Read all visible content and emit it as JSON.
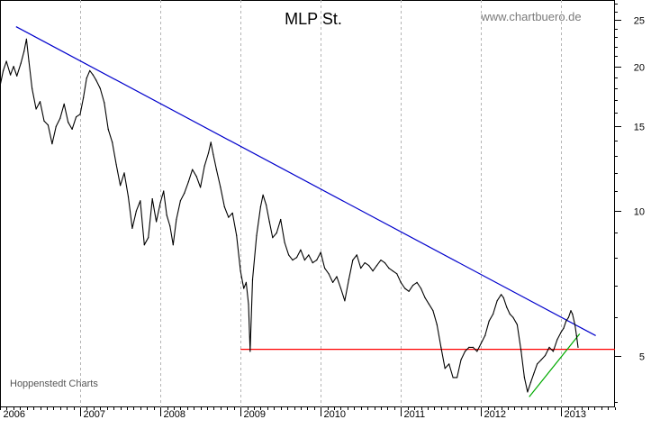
{
  "chart_data": {
    "type": "line",
    "title": "MLP St.",
    "source_label": "www.chartbuero.de",
    "credit_label": "Hoppenstedt Charts",
    "y_scale": "log",
    "ylim": [
      3.9,
      27.5
    ],
    "xlim": [
      2006.0,
      2013.67
    ],
    "y_ticks": [
      {
        "value": 5,
        "label": "5"
      },
      {
        "value": 10,
        "label": "10"
      },
      {
        "value": 15,
        "label": "15"
      },
      {
        "value": 20,
        "label": "20"
      },
      {
        "value": 25,
        "label": "25"
      }
    ],
    "x_ticks": [
      {
        "value": 2006,
        "label": "2006"
      },
      {
        "value": 2007,
        "label": "2007"
      },
      {
        "value": 2008,
        "label": "2008"
      },
      {
        "value": 2009,
        "label": "2009"
      },
      {
        "value": 2010,
        "label": "2010"
      },
      {
        "value": 2011,
        "label": "2011"
      },
      {
        "value": 2012,
        "label": "2012"
      },
      {
        "value": 2013,
        "label": "2013"
      }
    ],
    "gridlines": "vertical-dotted",
    "series": [
      {
        "name": "MLP St.",
        "color": "#000000",
        "points": [
          [
            2006.0,
            18.2
          ],
          [
            2006.04,
            19.6
          ],
          [
            2006.08,
            20.5
          ],
          [
            2006.13,
            19.2
          ],
          [
            2006.17,
            20.0
          ],
          [
            2006.21,
            19.1
          ],
          [
            2006.26,
            20.3
          ],
          [
            2006.3,
            21.5
          ],
          [
            2006.33,
            22.8
          ],
          [
            2006.36,
            20.5
          ],
          [
            2006.4,
            18.0
          ],
          [
            2006.45,
            16.3
          ],
          [
            2006.5,
            16.9
          ],
          [
            2006.55,
            15.4
          ],
          [
            2006.6,
            15.1
          ],
          [
            2006.65,
            13.8
          ],
          [
            2006.7,
            15.0
          ],
          [
            2006.75,
            15.6
          ],
          [
            2006.8,
            16.7
          ],
          [
            2006.85,
            15.3
          ],
          [
            2006.9,
            14.8
          ],
          [
            2006.95,
            15.7
          ],
          [
            2007.0,
            15.9
          ],
          [
            2007.04,
            17.2
          ],
          [
            2007.08,
            18.9
          ],
          [
            2007.12,
            19.6
          ],
          [
            2007.16,
            19.2
          ],
          [
            2007.2,
            18.7
          ],
          [
            2007.25,
            18.0
          ],
          [
            2007.3,
            16.8
          ],
          [
            2007.35,
            14.8
          ],
          [
            2007.4,
            13.9
          ],
          [
            2007.45,
            12.5
          ],
          [
            2007.5,
            11.3
          ],
          [
            2007.55,
            12.0
          ],
          [
            2007.6,
            10.7
          ],
          [
            2007.65,
            9.2
          ],
          [
            2007.7,
            10.0
          ],
          [
            2007.75,
            10.5
          ],
          [
            2007.8,
            8.5
          ],
          [
            2007.85,
            8.8
          ],
          [
            2007.9,
            10.6
          ],
          [
            2007.95,
            9.5
          ],
          [
            2008.0,
            10.4
          ],
          [
            2008.04,
            11.0
          ],
          [
            2008.08,
            9.8
          ],
          [
            2008.12,
            9.3
          ],
          [
            2008.16,
            8.5
          ],
          [
            2008.2,
            9.6
          ],
          [
            2008.25,
            10.5
          ],
          [
            2008.3,
            10.9
          ],
          [
            2008.35,
            11.5
          ],
          [
            2008.4,
            12.2
          ],
          [
            2008.45,
            11.8
          ],
          [
            2008.5,
            11.2
          ],
          [
            2008.55,
            12.4
          ],
          [
            2008.6,
            13.2
          ],
          [
            2008.63,
            13.9
          ],
          [
            2008.66,
            13.1
          ],
          [
            2008.7,
            12.2
          ],
          [
            2008.75,
            11.2
          ],
          [
            2008.8,
            10.2
          ],
          [
            2008.85,
            9.7
          ],
          [
            2008.9,
            9.9
          ],
          [
            2008.95,
            8.9
          ],
          [
            2009.0,
            7.5
          ],
          [
            2009.04,
            6.9
          ],
          [
            2009.07,
            7.1
          ],
          [
            2009.1,
            6.4
          ],
          [
            2009.12,
            5.1
          ],
          [
            2009.15,
            7.2
          ],
          [
            2009.2,
            8.9
          ],
          [
            2009.25,
            10.2
          ],
          [
            2009.28,
            10.8
          ],
          [
            2009.32,
            10.3
          ],
          [
            2009.36,
            9.5
          ],
          [
            2009.4,
            8.8
          ],
          [
            2009.45,
            9.0
          ],
          [
            2009.5,
            9.6
          ],
          [
            2009.55,
            8.6
          ],
          [
            2009.6,
            8.1
          ],
          [
            2009.65,
            7.9
          ],
          [
            2009.7,
            8.0
          ],
          [
            2009.75,
            8.3
          ],
          [
            2009.8,
            7.9
          ],
          [
            2009.85,
            8.1
          ],
          [
            2009.9,
            7.8
          ],
          [
            2009.95,
            7.9
          ],
          [
            2010.0,
            8.2
          ],
          [
            2010.05,
            7.6
          ],
          [
            2010.1,
            7.4
          ],
          [
            2010.15,
            7.1
          ],
          [
            2010.2,
            7.3
          ],
          [
            2010.25,
            6.9
          ],
          [
            2010.3,
            6.5
          ],
          [
            2010.35,
            7.2
          ],
          [
            2010.4,
            7.9
          ],
          [
            2010.45,
            8.1
          ],
          [
            2010.5,
            7.6
          ],
          [
            2010.55,
            7.8
          ],
          [
            2010.6,
            7.7
          ],
          [
            2010.65,
            7.5
          ],
          [
            2010.7,
            7.7
          ],
          [
            2010.75,
            7.9
          ],
          [
            2010.8,
            7.8
          ],
          [
            2010.85,
            7.6
          ],
          [
            2010.9,
            7.5
          ],
          [
            2010.95,
            7.4
          ],
          [
            2011.0,
            7.1
          ],
          [
            2011.05,
            6.9
          ],
          [
            2011.1,
            6.8
          ],
          [
            2011.15,
            7.0
          ],
          [
            2011.2,
            7.1
          ],
          [
            2011.25,
            6.9
          ],
          [
            2011.3,
            6.6
          ],
          [
            2011.35,
            6.4
          ],
          [
            2011.4,
            6.2
          ],
          [
            2011.45,
            5.8
          ],
          [
            2011.5,
            5.2
          ],
          [
            2011.55,
            4.7
          ],
          [
            2011.6,
            4.8
          ],
          [
            2011.65,
            4.5
          ],
          [
            2011.7,
            4.5
          ],
          [
            2011.75,
            4.9
          ],
          [
            2011.8,
            5.1
          ],
          [
            2011.85,
            5.2
          ],
          [
            2011.9,
            5.2
          ],
          [
            2011.95,
            5.1
          ],
          [
            2012.0,
            5.3
          ],
          [
            2012.05,
            5.5
          ],
          [
            2012.1,
            5.9
          ],
          [
            2012.15,
            6.1
          ],
          [
            2012.2,
            6.5
          ],
          [
            2012.25,
            6.7
          ],
          [
            2012.28,
            6.6
          ],
          [
            2012.32,
            6.3
          ],
          [
            2012.36,
            6.1
          ],
          [
            2012.4,
            6.0
          ],
          [
            2012.45,
            5.8
          ],
          [
            2012.5,
            5.1
          ],
          [
            2012.54,
            4.5
          ],
          [
            2012.58,
            4.2
          ],
          [
            2012.62,
            4.4
          ],
          [
            2012.66,
            4.6
          ],
          [
            2012.7,
            4.8
          ],
          [
            2012.75,
            4.9
          ],
          [
            2012.8,
            5.0
          ],
          [
            2012.85,
            5.2
          ],
          [
            2012.9,
            5.1
          ],
          [
            2012.95,
            5.4
          ],
          [
            2013.0,
            5.6
          ],
          [
            2013.03,
            5.7
          ],
          [
            2013.06,
            5.9
          ],
          [
            2013.09,
            6.0
          ],
          [
            2013.12,
            6.2
          ],
          [
            2013.14,
            6.1
          ],
          [
            2013.17,
            5.8
          ],
          [
            2013.19,
            5.5
          ],
          [
            2013.21,
            5.2
          ]
        ]
      }
    ],
    "trend_lines": [
      {
        "name": "downtrend-line",
        "color": "#0000cc",
        "from": [
          2006.2,
          24.2
        ],
        "to": [
          2013.43,
          5.5
        ]
      },
      {
        "name": "support-line",
        "color": "#ff0000",
        "from": [
          2009.0,
          5.15
        ],
        "to": [
          2013.67,
          5.15
        ]
      },
      {
        "name": "uptrend-line",
        "color": "#00aa00",
        "from": [
          2012.6,
          4.1
        ],
        "to": [
          2013.23,
          5.55
        ]
      }
    ]
  }
}
